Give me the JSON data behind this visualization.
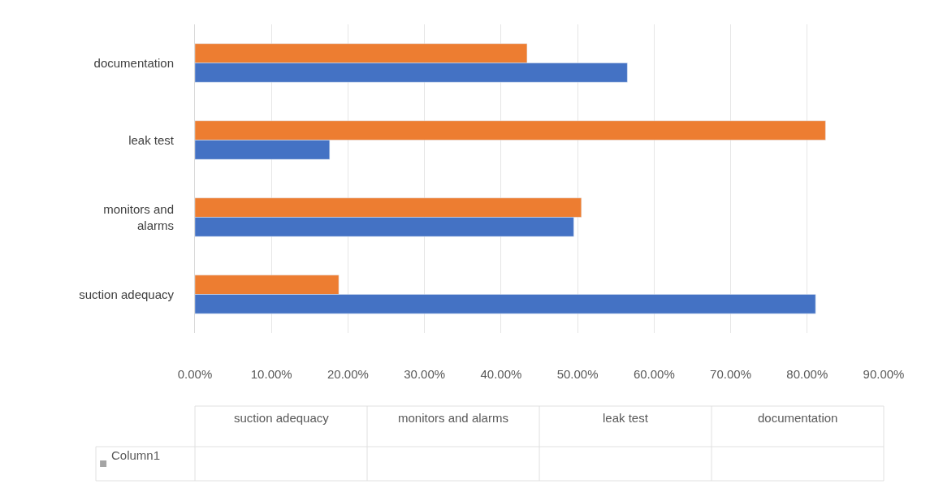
{
  "chart_data": {
    "type": "bar",
    "orientation": "horizontal",
    "categories": [
      "documentation",
      "leak test",
      "monitors and alarms",
      "suction adequacy"
    ],
    "series": [
      {
        "color": "#ed7d31",
        "values": [
          43.4,
          82.4,
          50.5,
          18.8
        ]
      },
      {
        "color": "#4472c4",
        "values": [
          56.5,
          17.6,
          49.5,
          81.1
        ]
      },
      {
        "name": "Column1",
        "color": "#a5a5a5",
        "values": [
          null,
          null,
          null,
          null
        ]
      }
    ],
    "xlim": [
      0,
      90
    ],
    "xticks": [
      {
        "value": 0,
        "label": "0.00%"
      },
      {
        "value": 10,
        "label": "10.00%"
      },
      {
        "value": 20,
        "label": "20.00%"
      },
      {
        "value": 30,
        "label": "30.00%"
      },
      {
        "value": 40,
        "label": "40.00%"
      },
      {
        "value": 50,
        "label": "50.00%"
      },
      {
        "value": 60,
        "label": "60.00%"
      },
      {
        "value": 70,
        "label": "70.00%"
      },
      {
        "value": 80,
        "label": "80.00%"
      },
      {
        "value": 90,
        "label": "90.00%"
      }
    ],
    "grid": "x"
  }
}
